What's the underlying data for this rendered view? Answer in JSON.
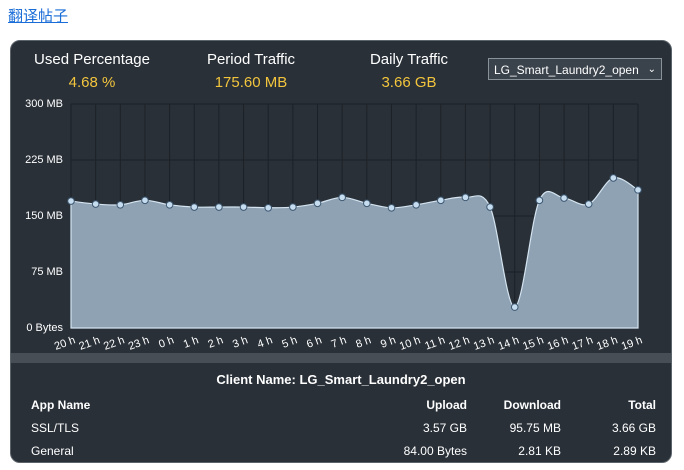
{
  "link": "翻译帖子",
  "stats": [
    {
      "label": "Used Percentage",
      "value": "4.68 %"
    },
    {
      "label": "Period Traffic",
      "value": "175.60 MB"
    },
    {
      "label": "Daily Traffic",
      "value": "3.66 GB"
    }
  ],
  "dropdown": "LG_Smart_Laundry2_open",
  "chart_data": {
    "type": "area",
    "categories": [
      "20 h",
      "21 h",
      "22 h",
      "23 h",
      "0 h",
      "1 h",
      "2 h",
      "3 h",
      "4 h",
      "5 h",
      "6 h",
      "7 h",
      "8 h",
      "9 h",
      "10 h",
      "11 h",
      "12 h",
      "13 h",
      "14 h",
      "15 h",
      "16 h",
      "17 h",
      "18 h",
      "19 h"
    ],
    "values": [
      170,
      166,
      165,
      171,
      165,
      162,
      162,
      162,
      161,
      162,
      167,
      175,
      167,
      161,
      165,
      171,
      175,
      162,
      28,
      171,
      174,
      166,
      201,
      185
    ],
    "color": "#8ea2b4",
    "ylim": [
      0,
      300
    ],
    "yticks": [
      {
        "value": 0,
        "label": "0 Bytes"
      },
      {
        "value": 75,
        "label": "75 MB"
      },
      {
        "value": 150,
        "label": "150 MB"
      },
      {
        "value": 225,
        "label": "225 MB"
      },
      {
        "value": 300,
        "label": "300 MB"
      }
    ],
    "grid": true
  },
  "table": {
    "title": "Client Name: LG_Smart_Laundry2_open",
    "columns": [
      "App Name",
      "Upload",
      "Download",
      "Total"
    ],
    "rows": [
      [
        "SSL/TLS",
        "3.57 GB",
        "95.75 MB",
        "3.66 GB"
      ],
      [
        "General",
        "84.00 Bytes",
        "2.81 KB",
        "2.89 KB"
      ]
    ]
  }
}
